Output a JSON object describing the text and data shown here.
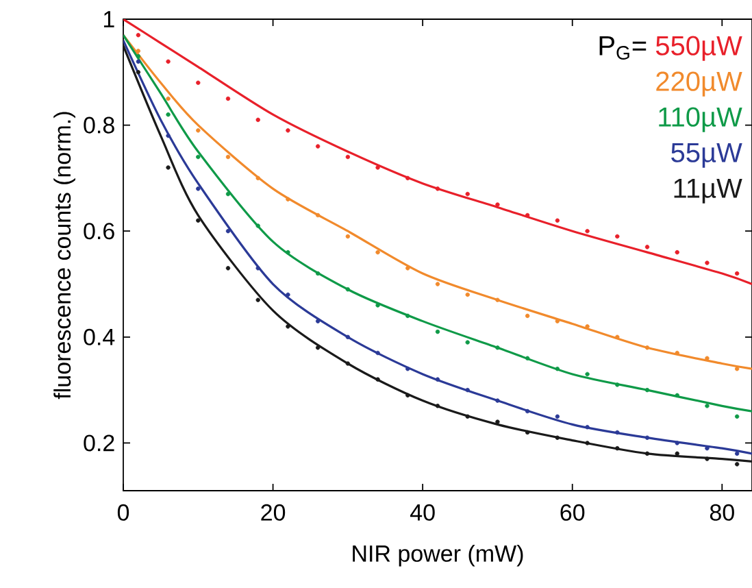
{
  "chart_data": {
    "type": "scatter",
    "xlabel": "NIR power (mW)",
    "ylabel": "fluorescence counts (norm.)",
    "legend_title": "P$_{G}$=",
    "x": [
      2,
      6,
      10,
      14,
      18,
      22,
      26,
      30,
      34,
      38,
      42,
      46,
      50,
      54,
      58,
      62,
      66,
      70,
      74,
      78,
      82
    ],
    "series": [
      {
        "name": "550µW",
        "marker": "circle",
        "color": "#e8202a",
        "values": [
          0.97,
          0.92,
          0.88,
          0.85,
          0.81,
          0.79,
          0.76,
          0.74,
          0.72,
          0.7,
          0.68,
          0.67,
          0.65,
          0.63,
          0.62,
          0.6,
          0.59,
          0.57,
          0.56,
          0.54,
          0.52
        ]
      },
      {
        "name": "220µW",
        "marker": "circle",
        "color": "#f18a2c",
        "values": [
          0.94,
          0.85,
          0.79,
          0.74,
          0.7,
          0.66,
          0.63,
          0.59,
          0.56,
          0.53,
          0.5,
          0.48,
          0.47,
          0.44,
          0.43,
          0.42,
          0.4,
          0.38,
          0.37,
          0.36,
          0.34
        ]
      },
      {
        "name": "110µW",
        "marker": "circle",
        "color": "#0f9a48",
        "values": [
          0.93,
          0.82,
          0.74,
          0.67,
          0.61,
          0.56,
          0.52,
          0.49,
          0.46,
          0.44,
          0.41,
          0.39,
          0.38,
          0.36,
          0.34,
          0.33,
          0.31,
          0.3,
          0.29,
          0.27,
          0.25
        ]
      },
      {
        "name": "55µW",
        "marker": "circle",
        "color": "#2b3a97",
        "values": [
          0.92,
          0.78,
          0.68,
          0.6,
          0.53,
          0.48,
          0.43,
          0.4,
          0.37,
          0.34,
          0.32,
          0.3,
          0.28,
          0.26,
          0.25,
          0.23,
          0.22,
          0.21,
          0.2,
          0.19,
          0.18
        ]
      },
      {
        "name": "11µW",
        "marker": "circle",
        "color": "#1a1a1a",
        "values": [
          0.9,
          0.72,
          0.62,
          0.53,
          0.47,
          0.42,
          0.38,
          0.35,
          0.32,
          0.29,
          0.27,
          0.25,
          0.24,
          0.22,
          0.21,
          0.2,
          0.19,
          0.18,
          0.18,
          0.17,
          0.16
        ]
      },
      {
        "type": "line",
        "marker": "none",
        "color": "#e8202a",
        "x": [
          0,
          5,
          10,
          20,
          30,
          40,
          50,
          60,
          70,
          80,
          84
        ],
        "values": [
          1.0,
          0.955,
          0.91,
          0.82,
          0.75,
          0.69,
          0.645,
          0.6,
          0.56,
          0.52,
          0.5
        ]
      },
      {
        "type": "line",
        "marker": "none",
        "color": "#f18a2c",
        "x": [
          0,
          5,
          10,
          20,
          30,
          40,
          50,
          60,
          70,
          80,
          84
        ],
        "values": [
          0.97,
          0.88,
          0.8,
          0.68,
          0.6,
          0.52,
          0.47,
          0.425,
          0.38,
          0.35,
          0.34
        ]
      },
      {
        "type": "line",
        "marker": "none",
        "color": "#0f9a48",
        "x": [
          0,
          5,
          10,
          20,
          30,
          40,
          50,
          60,
          70,
          80,
          84
        ],
        "values": [
          0.97,
          0.86,
          0.75,
          0.58,
          0.49,
          0.43,
          0.38,
          0.33,
          0.3,
          0.27,
          0.26
        ]
      },
      {
        "type": "line",
        "marker": "none",
        "color": "#2b3a97",
        "x": [
          0,
          5,
          10,
          20,
          30,
          40,
          50,
          60,
          70,
          80,
          84
        ],
        "values": [
          0.96,
          0.81,
          0.69,
          0.5,
          0.4,
          0.33,
          0.28,
          0.235,
          0.21,
          0.19,
          0.18
        ]
      },
      {
        "type": "line",
        "marker": "none",
        "color": "#1a1a1a",
        "x": [
          0,
          5,
          10,
          20,
          30,
          40,
          50,
          60,
          70,
          80,
          84
        ],
        "values": [
          0.95,
          0.78,
          0.63,
          0.45,
          0.35,
          0.28,
          0.235,
          0.205,
          0.18,
          0.17,
          0.165
        ]
      }
    ],
    "xlim": [
      0,
      84
    ],
    "ylim": [
      0.11,
      1.0
    ],
    "xticks": [
      0,
      20,
      40,
      60,
      80
    ],
    "yticks": [
      0.2,
      0.4,
      0.6,
      0.8,
      1
    ],
    "legend": "top right",
    "grid": false
  }
}
